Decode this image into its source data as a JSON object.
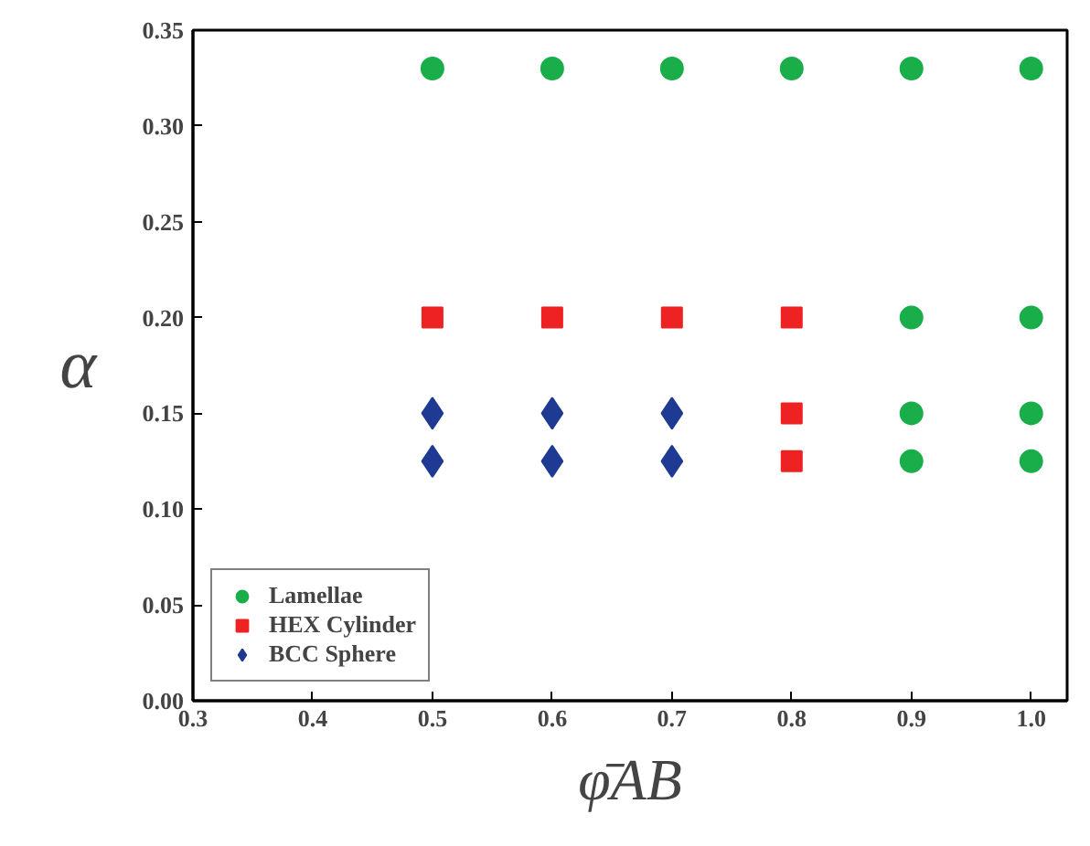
{
  "chart_data": {
    "type": "scatter",
    "xlabel": "φ̄AB",
    "ylabel": "α",
    "xlim": [
      0.3,
      1.03
    ],
    "ylim": [
      0,
      0.35
    ],
    "xticks": [
      {
        "value": 0.3,
        "label": "0.3"
      },
      {
        "value": 0.4,
        "label": "0.4"
      },
      {
        "value": 0.5,
        "label": "0.5"
      },
      {
        "value": 0.6,
        "label": "0.6"
      },
      {
        "value": 0.7,
        "label": "0.7"
      },
      {
        "value": 0.8,
        "label": "0.8"
      },
      {
        "value": 0.9,
        "label": "0.9"
      },
      {
        "value": 1.0,
        "label": "1.0"
      }
    ],
    "yticks": [
      {
        "value": 0,
        "label": "0.00"
      },
      {
        "value": 0.05,
        "label": "0.05"
      },
      {
        "value": 0.1,
        "label": "0.10"
      },
      {
        "value": 0.15,
        "label": "0.15"
      },
      {
        "value": 0.2,
        "label": "0.20"
      },
      {
        "value": 0.25,
        "label": "0.25"
      },
      {
        "value": 0.3,
        "label": "0.30"
      },
      {
        "value": 0.35,
        "label": "0.35"
      }
    ],
    "grid": false,
    "legend": "bottom left",
    "series": [
      {
        "name": "Lamellae",
        "color": "#1aae4a",
        "marker": "circle",
        "x": [
          0.5,
          0.6,
          0.7,
          0.8,
          0.9,
          1.0,
          0.9,
          1.0,
          0.9,
          1.0,
          0.9,
          1.0
        ],
        "values": [
          0.33,
          0.33,
          0.33,
          0.33,
          0.33,
          0.33,
          0.2,
          0.2,
          0.15,
          0.15,
          0.125,
          0.125
        ]
      },
      {
        "name": "HEX Cylinder",
        "color": "#ee2222",
        "marker": "square",
        "x": [
          0.5,
          0.6,
          0.7,
          0.8,
          0.8,
          0.8
        ],
        "values": [
          0.2,
          0.2,
          0.2,
          0.2,
          0.15,
          0.125
        ]
      },
      {
        "name": "BCC Sphere",
        "color": "#1f3a93",
        "marker": "diamond",
        "x": [
          0.5,
          0.6,
          0.7,
          0.5,
          0.6,
          0.7
        ],
        "values": [
          0.15,
          0.15,
          0.15,
          0.125,
          0.125,
          0.125
        ]
      }
    ]
  }
}
